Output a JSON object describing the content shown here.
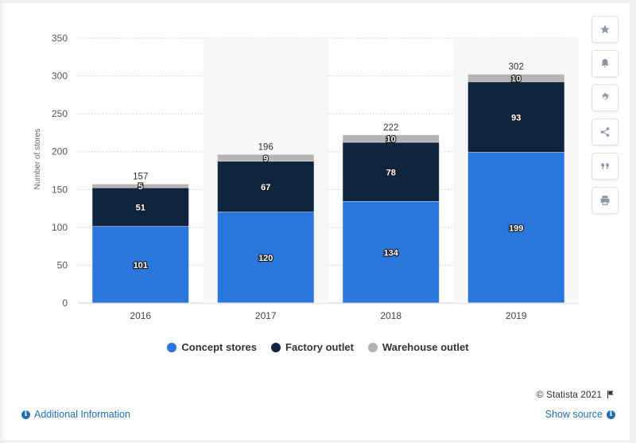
{
  "chart_data": {
    "type": "bar",
    "stacked": true,
    "categories": [
      "2016",
      "2017",
      "2018",
      "2019"
    ],
    "series": [
      {
        "name": "Concept stores",
        "color": "#2a76dc",
        "values": [
          101,
          120,
          134,
          199
        ]
      },
      {
        "name": "Factory outlet",
        "color": "#0f243e",
        "values": [
          51,
          67,
          78,
          93
        ]
      },
      {
        "name": "Warehouse outlet",
        "color": "#b4b4b4",
        "values": [
          5,
          9,
          10,
          10
        ]
      }
    ],
    "totals": [
      157,
      196,
      222,
      302
    ],
    "title": "",
    "xlabel": "",
    "ylabel": "Number of stores",
    "ylim": [
      0,
      350
    ],
    "yticks": [
      0,
      50,
      100,
      150,
      200,
      250,
      300,
      350
    ],
    "grid": true,
    "legend_position": "bottom"
  },
  "toolbar": {
    "icons": [
      "star-icon",
      "bell-icon",
      "gear-icon",
      "share-icon",
      "quote-icon",
      "print-icon"
    ]
  },
  "footer": {
    "credits": "© Statista 2021",
    "additional_info": "Additional Information",
    "show_source": "Show source"
  }
}
